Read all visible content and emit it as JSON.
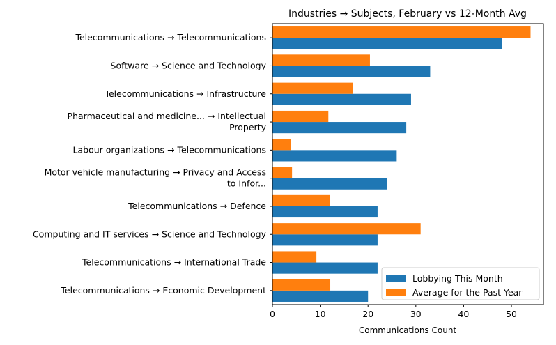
{
  "chart_data": {
    "type": "bar",
    "orientation": "horizontal",
    "title": "Industries → Subjects, February vs 12-Month Avg",
    "xlabel": "Communications Count",
    "ylabel": "",
    "xlim": [
      0,
      56.7
    ],
    "xticks": [
      0,
      10,
      20,
      30,
      40,
      50
    ],
    "grid": false,
    "legend_position": "bottom-right",
    "categories": [
      [
        "Telecommunications → Telecommunications"
      ],
      [
        "Software → Science and Technology"
      ],
      [
        "Telecommunications → Infrastructure"
      ],
      [
        "Pharmaceutical and medicine... → Intellectual",
        "Property"
      ],
      [
        "Labour organizations → Telecommunications"
      ],
      [
        "Motor vehicle manufacturing → Privacy and Access",
        "to Infor..."
      ],
      [
        "Telecommunications → Defence"
      ],
      [
        "Computing and IT services → Science and Technology"
      ],
      [
        "Telecommunications → International Trade"
      ],
      [
        "Telecommunications → Economic Development"
      ]
    ],
    "series": [
      {
        "name": "Lobbying This Month",
        "color": "#1f77b4",
        "values": [
          48,
          33,
          29,
          28,
          26,
          24,
          22,
          22,
          22,
          20
        ]
      },
      {
        "name": "Average for the Past Year",
        "color": "#ff7f0e",
        "values": [
          54,
          20.4,
          16.9,
          11.7,
          3.8,
          4.1,
          12,
          31,
          9.2,
          12.1
        ]
      }
    ]
  }
}
